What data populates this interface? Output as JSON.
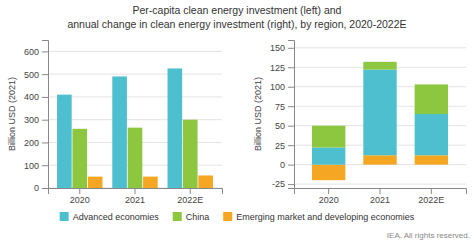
{
  "chart_data": [
    {
      "type": "bar",
      "title": "Per-capita clean energy investment (left) and",
      "subtitle": "annual change in clean energy investment (right), by region, 2020-2022E",
      "annotations": [
        "IEA. All rights reserved."
      ],
      "categories": [
        "2020",
        "2021",
        "2022E"
      ],
      "series": [
        {
          "name": "Advanced economies",
          "color": "#4dbfcf",
          "values": [
            410,
            490,
            525
          ]
        },
        {
          "name": "China",
          "color": "#8dc63f",
          "values": [
            260,
            265,
            300
          ]
        },
        {
          "name": "Emerging market and developing economies",
          "color": "#f5a623",
          "values": [
            50,
            50,
            55
          ]
        }
      ],
      "ylabel": "Billion USD (2021)",
      "ylim": [
        0,
        650
      ],
      "yticks": [
        0,
        100,
        200,
        300,
        400,
        500,
        600
      ],
      "grid": true,
      "legend": "bottom"
    },
    {
      "type": "bar",
      "stacked": true,
      "categories": [
        "2020",
        "2021",
        "2022E"
      ],
      "series": [
        {
          "name": "Emerging market and developing economies",
          "color": "#f5a623",
          "values": [
            -20,
            12,
            12
          ]
        },
        {
          "name": "Advanced economies",
          "color": "#4dbfcf",
          "values": [
            22,
            110,
            53
          ]
        },
        {
          "name": "China",
          "color": "#8dc63f",
          "values": [
            28,
            10,
            38
          ]
        }
      ],
      "ylabel": "Billion USD (2021)",
      "ylim": [
        -30,
        160
      ],
      "yticks": [
        -25,
        0,
        25,
        50,
        75,
        100,
        125,
        150
      ],
      "grid": true
    }
  ]
}
